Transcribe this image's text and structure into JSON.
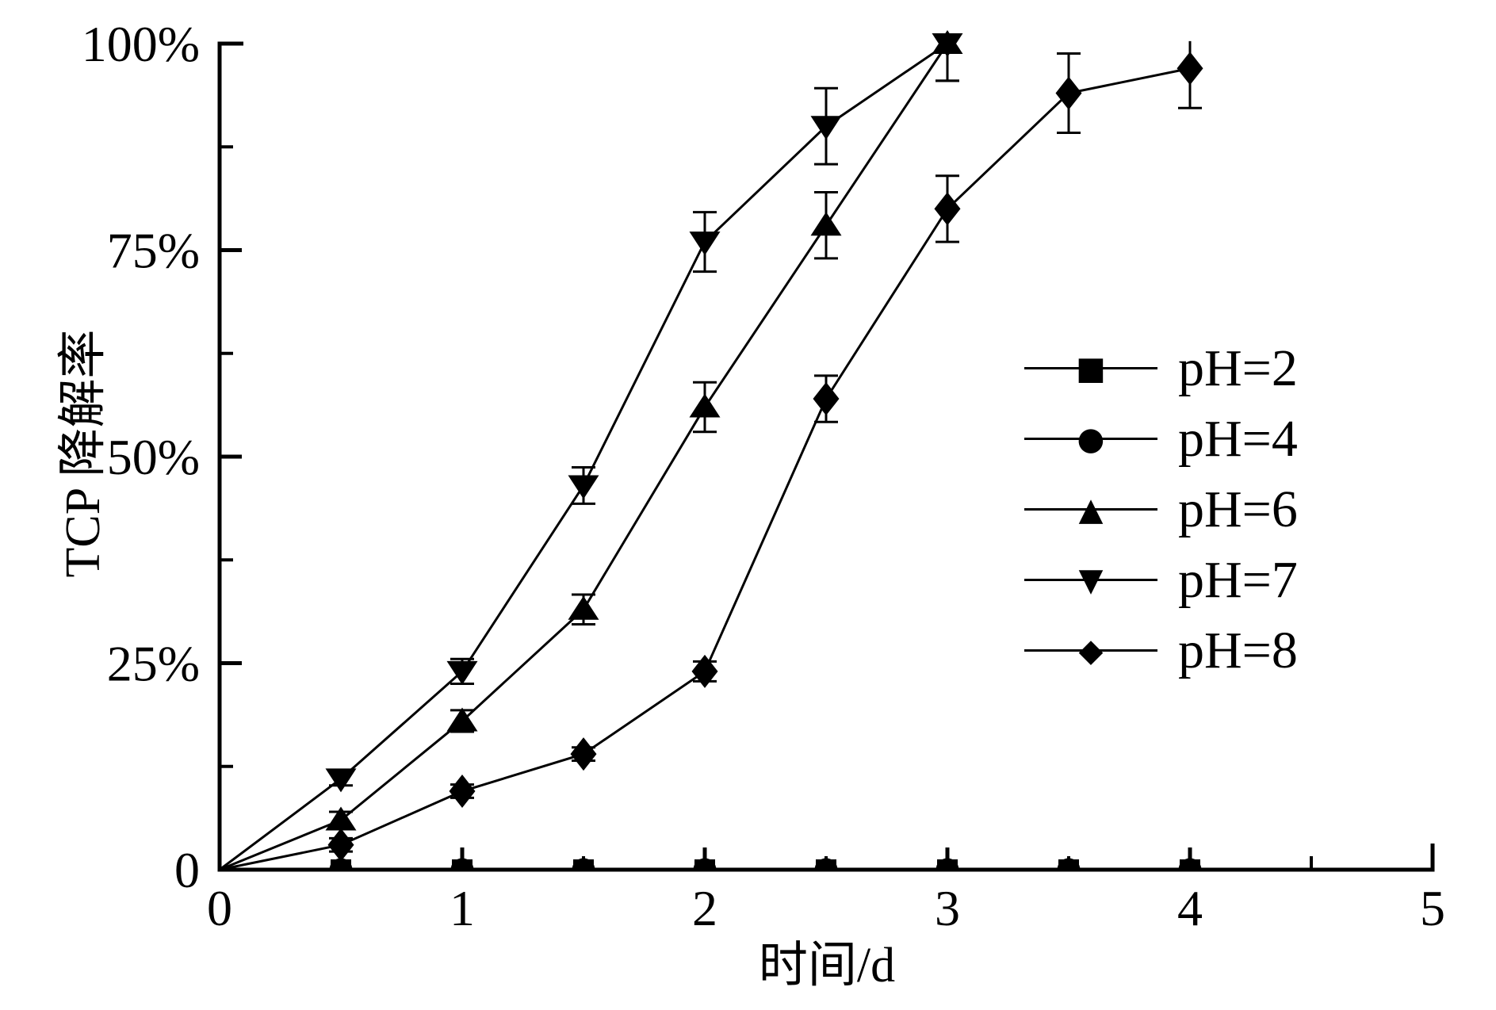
{
  "page": {
    "background": "#ffffff",
    "foreground": "#000000"
  },
  "chart_data": {
    "type": "line",
    "title": "",
    "xlabel": "时间/d",
    "ylabel": "TCP 降解率",
    "xlim": [
      0,
      5
    ],
    "ylim": [
      0,
      100
    ],
    "x_ticks": [
      0,
      1,
      2,
      3,
      4,
      5
    ],
    "x_tick_labels": [
      "0",
      "1",
      "2",
      "3",
      "4",
      "5"
    ],
    "x_minor_ticks": [
      0.5,
      1.5,
      2.5,
      3.5,
      4.5
    ],
    "y_ticks": [
      0,
      25,
      50,
      75,
      100
    ],
    "y_tick_labels": [
      "0",
      "25%",
      "50%",
      "75%",
      "100%"
    ],
    "y_minor_ticks": [
      12.5,
      37.5,
      62.5,
      87.5
    ],
    "grid": false,
    "legend_position": "inside-right-middle",
    "colors": {
      "foreground": "#000000",
      "background": "#ffffff"
    },
    "series": [
      {
        "name": "pH=2",
        "marker": "square",
        "marker_glyph": "■",
        "start_at_origin": false,
        "x": [
          0.5,
          1,
          1.5,
          2,
          2.5,
          3,
          3.5,
          4
        ],
        "y": [
          0,
          0,
          0,
          0,
          0,
          0,
          0,
          0
        ],
        "yerr": [
          0,
          0,
          0,
          0,
          0,
          0,
          0,
          0
        ]
      },
      {
        "name": "pH=4",
        "marker": "circle",
        "marker_glyph": "●",
        "start_at_origin": false,
        "x": [
          0.5,
          1,
          1.5,
          2,
          2.5,
          3,
          3.5,
          4
        ],
        "y": [
          0,
          0,
          0,
          0,
          0,
          0,
          0,
          0
        ],
        "yerr": [
          0,
          0,
          0,
          0,
          0,
          0,
          0,
          0
        ]
      },
      {
        "name": "pH=6",
        "marker": "triangle-up",
        "marker_glyph": "▲",
        "start_at_origin": true,
        "x": [
          0.5,
          1,
          1.5,
          2,
          2.5,
          3
        ],
        "y": [
          6,
          18,
          31.5,
          56,
          78,
          100
        ],
        "yerr": [
          1,
          1.3,
          1.8,
          3,
          4,
          4.5
        ]
      },
      {
        "name": "pH=7",
        "marker": "triangle-down",
        "marker_glyph": "▼",
        "start_at_origin": true,
        "x": [
          0.5,
          1,
          1.5,
          2,
          2.5,
          3
        ],
        "y": [
          11,
          24,
          46.5,
          76,
          90,
          100
        ],
        "yerr": [
          0.8,
          1.5,
          2.2,
          3.6,
          4.6,
          4.5
        ]
      },
      {
        "name": "pH=8",
        "marker": "diamond",
        "marker_glyph": "◆",
        "start_at_origin": true,
        "x": [
          0.5,
          1,
          1.5,
          2,
          2.5,
          3,
          3.5,
          4
        ],
        "y": [
          3,
          9.5,
          14,
          24,
          57,
          80,
          94,
          97
        ],
        "yerr": [
          0.8,
          0.8,
          0.8,
          1.2,
          2.8,
          4,
          4.8,
          4.8
        ]
      }
    ]
  }
}
